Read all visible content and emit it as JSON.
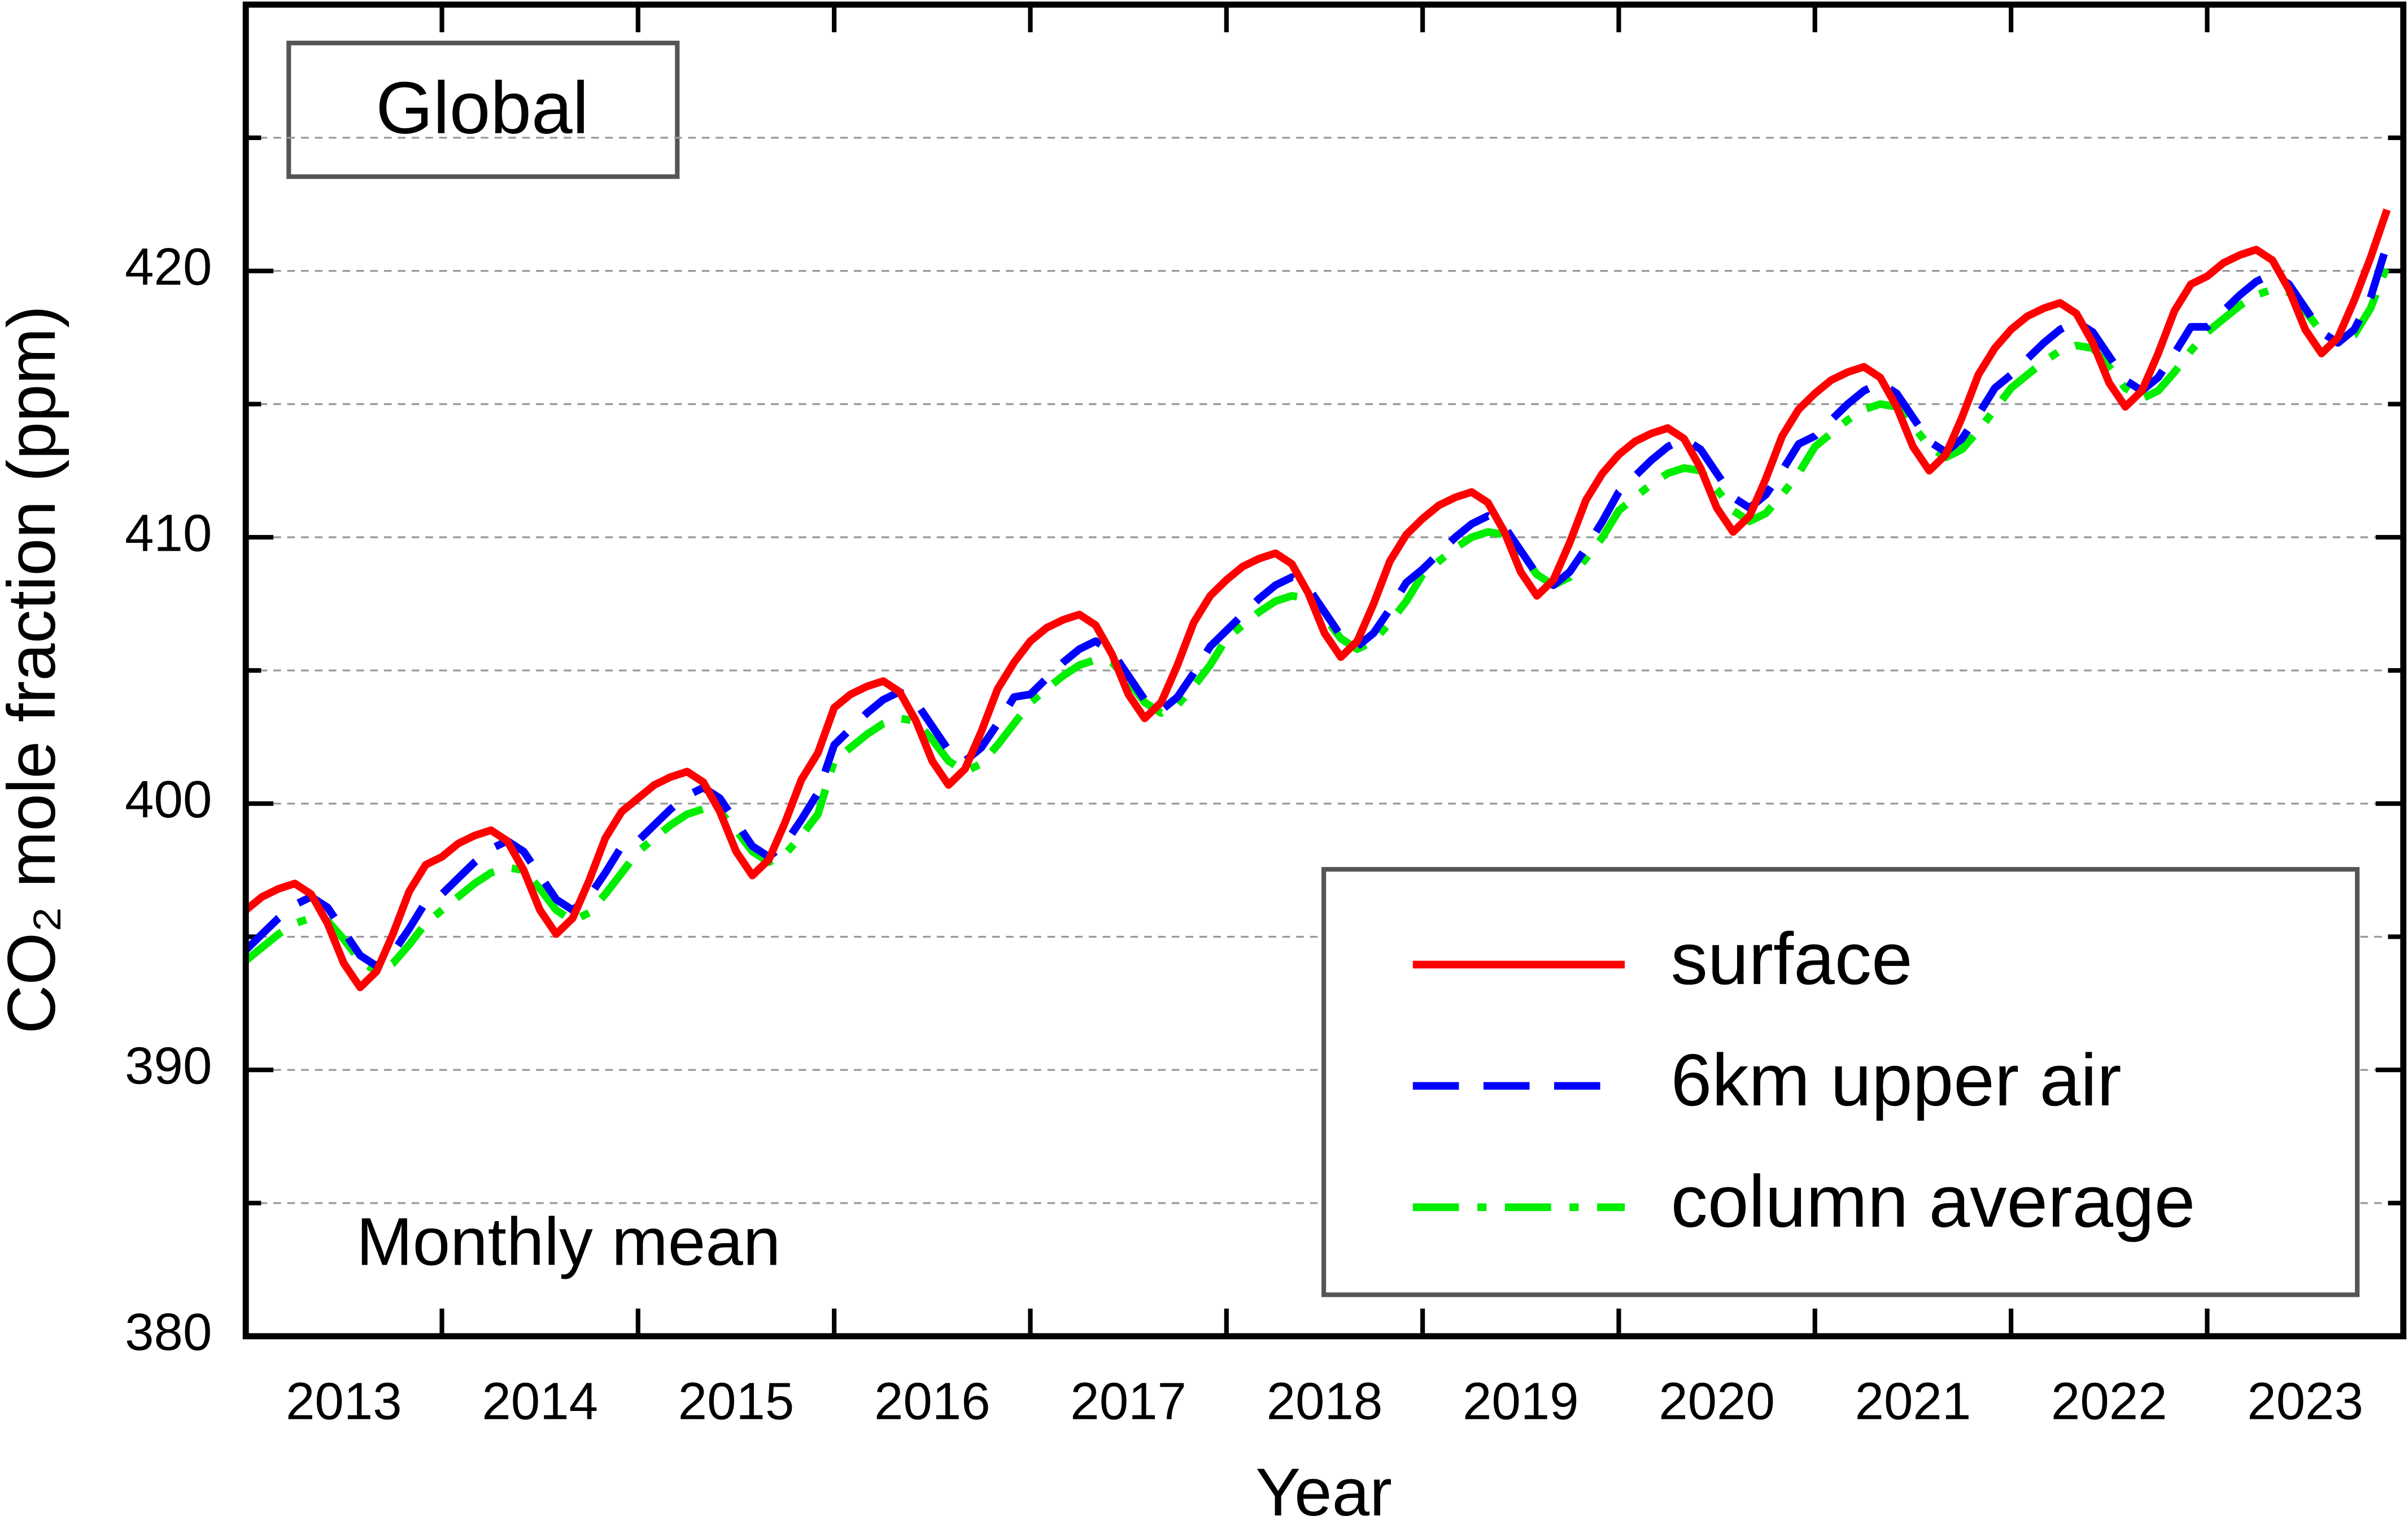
{
  "chart_data": {
    "type": "line",
    "annotations": {
      "region": "Global",
      "note": "Monthly mean"
    },
    "xlabel": "Year",
    "ylabel": "CO₂ mole fraction (ppm)",
    "xlim": [
      2013,
      2024
    ],
    "ylim": [
      380,
      430
    ],
    "yticks": [
      380,
      390,
      400,
      410,
      420
    ],
    "yminor_ticks": [
      385,
      395,
      405,
      415,
      425
    ],
    "xticks": [
      2014,
      2015,
      2016,
      2017,
      2018,
      2019,
      2020,
      2021,
      2022,
      2023
    ],
    "xtick_labels": [
      {
        "value": 2013.5,
        "label": "2013"
      },
      {
        "value": 2014.5,
        "label": "2014"
      },
      {
        "value": 2015.5,
        "label": "2015"
      },
      {
        "value": 2016.5,
        "label": "2016"
      },
      {
        "value": 2017.5,
        "label": "2017"
      },
      {
        "value": 2018.5,
        "label": "2018"
      },
      {
        "value": 2019.5,
        "label": "2019"
      },
      {
        "value": 2020.5,
        "label": "2020"
      },
      {
        "value": 2021.5,
        "label": "2021"
      },
      {
        "value": 2022.5,
        "label": "2022"
      },
      {
        "value": 2023.5,
        "label": "2023"
      }
    ],
    "grid": true,
    "legend": "lower right",
    "x": [
      2013,
      2013.083,
      2013.167,
      2013.25,
      2013.333,
      2013.417,
      2013.5,
      2013.583,
      2013.667,
      2013.75,
      2013.833,
      2013.917,
      2014,
      2014.083,
      2014.167,
      2014.25,
      2014.333,
      2014.417,
      2014.5,
      2014.583,
      2014.667,
      2014.75,
      2014.833,
      2014.917,
      2015,
      2015.083,
      2015.167,
      2015.25,
      2015.333,
      2015.417,
      2015.5,
      2015.583,
      2015.667,
      2015.75,
      2015.833,
      2015.917,
      2016,
      2016.083,
      2016.167,
      2016.25,
      2016.333,
      2016.417,
      2016.5,
      2016.583,
      2016.667,
      2016.75,
      2016.833,
      2016.917,
      2017,
      2017.083,
      2017.167,
      2017.25,
      2017.333,
      2017.417,
      2017.5,
      2017.583,
      2017.667,
      2017.75,
      2017.833,
      2017.917,
      2018,
      2018.083,
      2018.167,
      2018.25,
      2018.333,
      2018.417,
      2018.5,
      2018.583,
      2018.667,
      2018.75,
      2018.833,
      2018.917,
      2019,
      2019.083,
      2019.167,
      2019.25,
      2019.333,
      2019.417,
      2019.5,
      2019.583,
      2019.667,
      2019.75,
      2019.833,
      2019.917,
      2020,
      2020.083,
      2020.167,
      2020.25,
      2020.333,
      2020.417,
      2020.5,
      2020.583,
      2020.667,
      2020.75,
      2020.833,
      2020.917,
      2021,
      2021.083,
      2021.167,
      2021.25,
      2021.333,
      2021.417,
      2021.5,
      2021.583,
      2021.667,
      2021.75,
      2021.833,
      2021.917,
      2022,
      2022.083,
      2022.167,
      2022.25,
      2022.333,
      2022.417,
      2022.5,
      2022.583,
      2022.667,
      2022.75,
      2022.833,
      2022.917,
      2023,
      2023.083,
      2023.167,
      2023.25,
      2023.333,
      2023.417,
      2023.5,
      2023.583,
      2023.667,
      2023.75,
      2023.833,
      2023.917
    ],
    "series": [
      {
        "name": "surface",
        "color": "#ff0000",
        "style": "solid",
        "values": [
          396.0,
          396.5,
          396.8,
          397.0,
          396.6,
          395.5,
          394.0,
          393.1,
          393.7,
          395.1,
          396.7,
          397.7,
          398.0,
          398.5,
          398.8,
          399.0,
          398.6,
          397.5,
          396.0,
          395.1,
          395.7,
          397.1,
          398.7,
          399.7,
          400.2,
          400.7,
          401.0,
          401.2,
          400.8,
          399.7,
          398.2,
          397.3,
          397.9,
          399.3,
          400.9,
          401.9,
          403.6,
          404.1,
          404.4,
          404.6,
          404.2,
          403.1,
          401.6,
          400.7,
          401.3,
          402.7,
          404.3,
          405.3,
          406.1,
          406.6,
          406.9,
          407.1,
          406.7,
          405.6,
          404.1,
          403.2,
          403.8,
          405.2,
          406.8,
          407.8,
          408.4,
          408.9,
          409.2,
          409.4,
          409.0,
          407.9,
          406.4,
          405.5,
          406.1,
          407.5,
          409.1,
          410.1,
          410.7,
          411.2,
          411.5,
          411.7,
          411.3,
          410.2,
          408.7,
          407.8,
          408.4,
          409.8,
          411.4,
          412.4,
          413.1,
          413.6,
          413.9,
          414.1,
          413.7,
          412.6,
          411.1,
          410.2,
          410.8,
          412.2,
          413.8,
          414.8,
          415.4,
          415.9,
          416.2,
          416.4,
          416.0,
          414.9,
          413.4,
          412.5,
          413.1,
          414.5,
          416.1,
          417.1,
          417.8,
          418.3,
          418.6,
          418.8,
          418.4,
          417.3,
          415.8,
          414.9,
          415.5,
          416.9,
          418.5,
          419.5,
          419.8,
          420.3,
          420.6,
          420.8,
          420.4,
          419.3,
          417.8,
          416.9,
          417.5,
          418.9,
          420.5,
          422.3
        ]
      },
      {
        "name": "6km upper air",
        "color": "#0000ff",
        "style": "dashed",
        "values": [
          394.5,
          395.1,
          395.7,
          396.2,
          396.5,
          396.1,
          395.2,
          394.3,
          393.9,
          394.4,
          395.3,
          396.3,
          396.6,
          397.2,
          397.8,
          398.3,
          398.6,
          398.2,
          397.3,
          396.4,
          396.0,
          396.5,
          397.4,
          398.4,
          398.6,
          399.2,
          399.8,
          400.3,
          400.6,
          400.2,
          399.3,
          398.4,
          398.0,
          398.5,
          399.4,
          400.4,
          402.2,
          402.8,
          403.4,
          403.9,
          404.2,
          403.8,
          402.9,
          402.0,
          401.6,
          402.1,
          403.0,
          404.0,
          404.1,
          404.7,
          405.3,
          405.8,
          406.1,
          405.7,
          404.8,
          403.9,
          403.5,
          404.0,
          404.9,
          405.9,
          406.5,
          407.1,
          407.7,
          408.2,
          408.5,
          408.1,
          407.2,
          406.3,
          405.9,
          406.4,
          407.3,
          408.3,
          408.8,
          409.4,
          410.0,
          410.5,
          410.8,
          410.4,
          409.5,
          408.6,
          408.2,
          408.7,
          409.6,
          410.6,
          411.7,
          412.3,
          412.9,
          413.4,
          413.7,
          413.3,
          412.4,
          411.5,
          411.1,
          411.6,
          412.5,
          413.5,
          413.8,
          414.4,
          415.0,
          415.5,
          415.8,
          415.4,
          414.5,
          413.6,
          413.2,
          413.7,
          414.6,
          415.6,
          416.1,
          416.7,
          417.3,
          417.8,
          418.1,
          417.7,
          416.8,
          415.9,
          415.5,
          416.0,
          416.9,
          417.9,
          417.9,
          418.5,
          419.1,
          419.6,
          419.9,
          419.5,
          418.6,
          417.7,
          417.3,
          417.8,
          419.0,
          421.0
        ]
      },
      {
        "name": "column average",
        "color": "#00ee00",
        "style": "dashdot",
        "values": [
          394.1,
          394.6,
          395.1,
          395.5,
          395.7,
          395.6,
          394.9,
          394.1,
          393.7,
          394.0,
          394.7,
          395.5,
          396.0,
          396.5,
          397.0,
          397.4,
          397.6,
          397.5,
          396.8,
          396.0,
          395.6,
          395.9,
          396.6,
          397.4,
          398.2,
          398.7,
          399.2,
          399.6,
          399.8,
          399.7,
          399.0,
          398.2,
          397.8,
          398.1,
          398.8,
          399.6,
          401.6,
          402.1,
          402.6,
          403.0,
          403.2,
          403.1,
          402.4,
          401.6,
          401.2,
          401.5,
          402.2,
          403.0,
          403.8,
          404.3,
          404.8,
          405.2,
          405.4,
          405.3,
          404.6,
          403.8,
          403.4,
          403.7,
          404.4,
          405.2,
          406.2,
          406.7,
          407.2,
          407.6,
          407.8,
          407.7,
          407.0,
          406.2,
          405.8,
          406.1,
          406.8,
          407.6,
          408.6,
          409.1,
          409.6,
          410.0,
          410.2,
          410.1,
          409.4,
          408.6,
          408.2,
          408.5,
          409.2,
          410.0,
          411.0,
          411.5,
          412.0,
          412.4,
          412.6,
          412.5,
          411.8,
          411.0,
          410.6,
          410.9,
          411.6,
          412.4,
          413.4,
          413.9,
          414.4,
          414.8,
          415.0,
          414.9,
          414.2,
          413.4,
          413.0,
          413.3,
          414.0,
          414.8,
          415.6,
          416.1,
          416.6,
          417.0,
          417.2,
          417.1,
          416.4,
          415.6,
          415.2,
          415.5,
          416.2,
          417.0,
          417.7,
          418.2,
          418.7,
          419.1,
          419.3,
          419.2,
          418.5,
          417.7,
          417.3,
          417.6,
          418.6,
          420.2
        ]
      }
    ]
  }
}
